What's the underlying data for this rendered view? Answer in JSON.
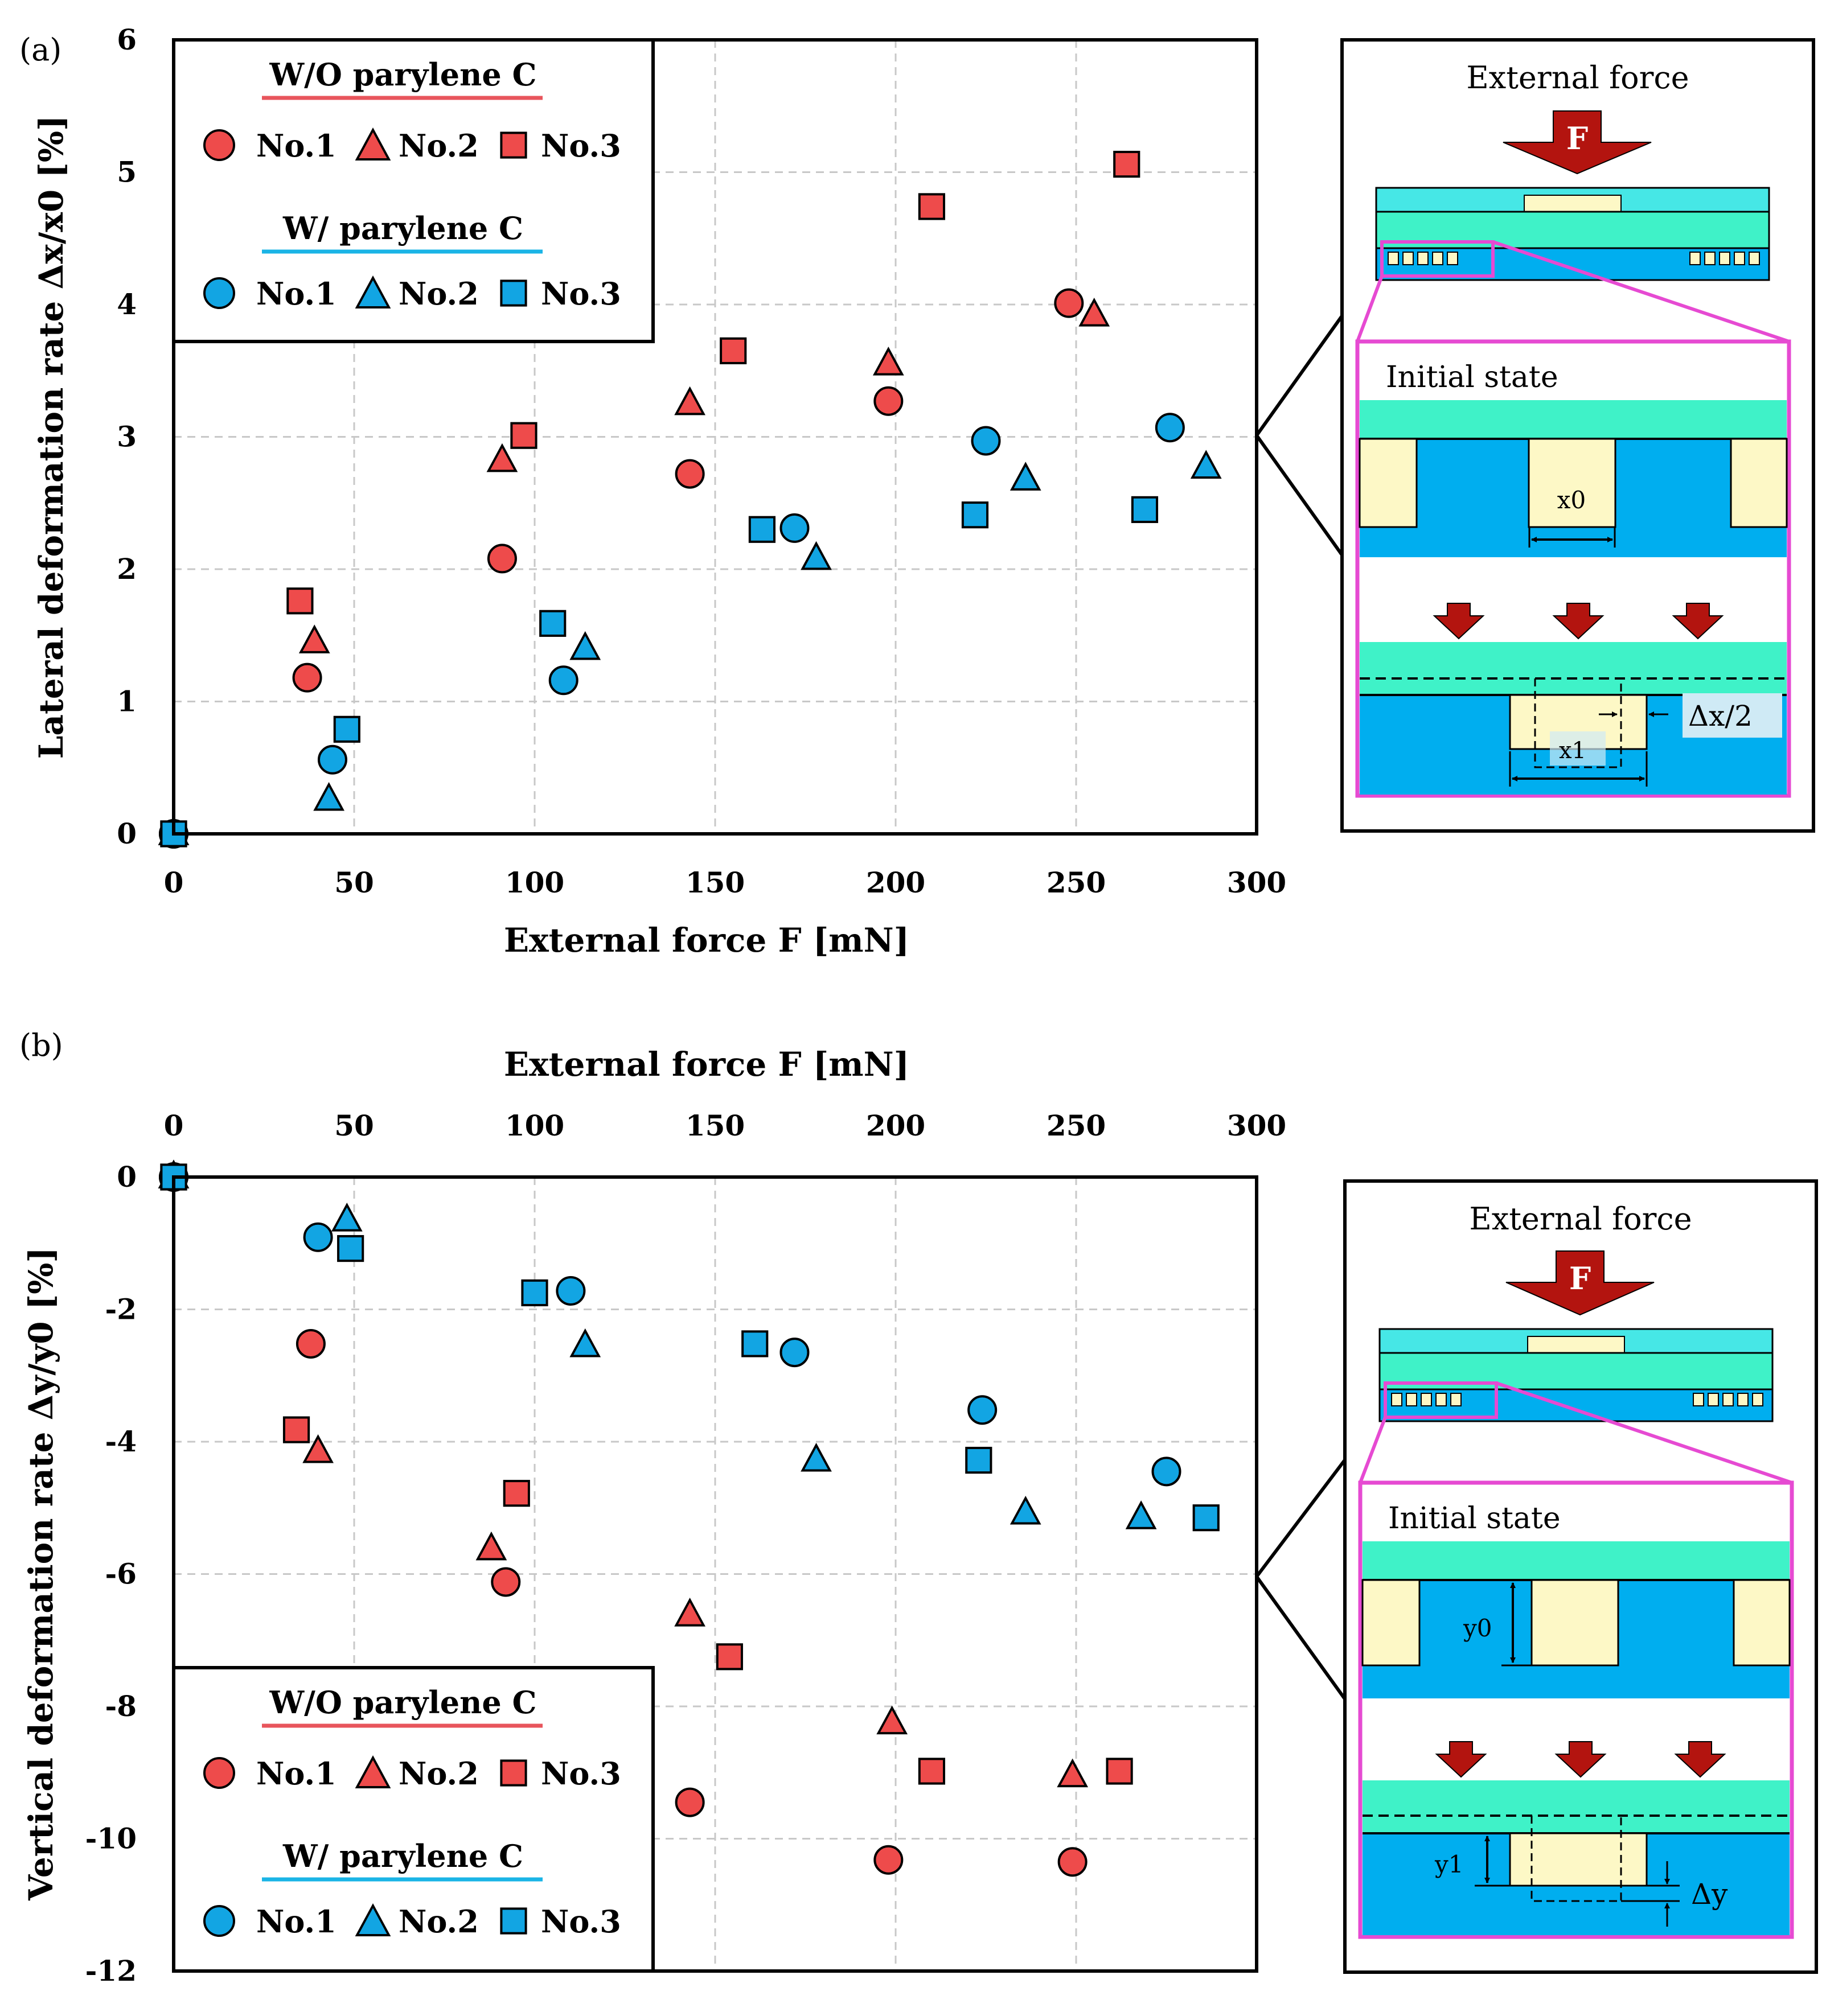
{
  "colors": {
    "wo": "#ee4b4b",
    "w": "#12a5e3",
    "wo_line": "#e8555c",
    "w_line": "#1ab4e6",
    "inset_cyan": "#46e7e6",
    "inset_green": "#3ff2c8",
    "inset_blue": "#00aeef",
    "inset_pad": "#fdf8c6",
    "inset_magenta": "#e64ad2",
    "arrow_red": "#b3140f"
  },
  "chart_data": [
    {
      "panel_label": "(a)",
      "type": "scatter",
      "xlabel": "External force F [mN]",
      "ylabel": "Lateral deformation rate Δx/x0 [%]",
      "xlim": [
        0,
        300
      ],
      "ylim": [
        0,
        6
      ],
      "xticks": [
        0,
        50,
        100,
        150,
        200,
        250,
        300
      ],
      "yticks": [
        0,
        1,
        2,
        3,
        4,
        5,
        6
      ],
      "xtick_labels": [
        "0",
        "50",
        "100",
        "150",
        "200",
        "250",
        "300"
      ],
      "ytick_labels": [
        "0",
        "1",
        "2",
        "3",
        "4",
        "5",
        "6"
      ],
      "grid": true,
      "legend_position": "top-left",
      "legend": {
        "group1_title": "W/O parylene C",
        "group2_title": "W/ parylene C",
        "entries": [
          "No.1",
          "No.2",
          "No.3"
        ]
      },
      "series": [
        {
          "name": "W/O parylene C No.1",
          "group": "wo",
          "marker": "circle",
          "x": [
            0,
            37,
            91,
            143,
            198,
            248
          ],
          "y": [
            0,
            1.18,
            2.08,
            2.72,
            3.27,
            4.01
          ]
        },
        {
          "name": "W/O parylene C No.2",
          "group": "wo",
          "marker": "triangle",
          "x": [
            0,
            39,
            91,
            143,
            198,
            255
          ],
          "y": [
            0,
            1.45,
            2.82,
            3.25,
            3.55,
            3.92
          ]
        },
        {
          "name": "W/O parylene C No.3",
          "group": "wo",
          "marker": "square",
          "x": [
            0,
            35,
            97,
            155,
            210,
            264
          ],
          "y": [
            0,
            1.76,
            3.01,
            3.65,
            4.74,
            5.06
          ]
        },
        {
          "name": "W/ parylene C No.1",
          "group": "w",
          "marker": "circle",
          "x": [
            0,
            44,
            108,
            172,
            225,
            276
          ],
          "y": [
            0,
            0.56,
            1.16,
            2.31,
            2.97,
            3.07
          ]
        },
        {
          "name": "W/ parylene C No.2",
          "group": "w",
          "marker": "triangle",
          "x": [
            0,
            43,
            114,
            178,
            236,
            286
          ],
          "y": [
            0,
            0.26,
            1.4,
            2.08,
            2.68,
            2.77
          ]
        },
        {
          "name": "W/ parylene C No.3",
          "group": "w",
          "marker": "square",
          "x": [
            0,
            48,
            105,
            163,
            222,
            269
          ],
          "y": [
            0,
            0.79,
            1.59,
            2.3,
            2.41,
            2.45
          ]
        }
      ]
    },
    {
      "panel_label": "(b)",
      "type": "scatter",
      "xlabel": "External force F [mN]",
      "ylabel": "Vertical deformation rate Δy/y0 [%]",
      "xlim": [
        0,
        300
      ],
      "ylim": [
        -12,
        0
      ],
      "xticks": [
        0,
        50,
        100,
        150,
        200,
        250,
        300
      ],
      "yticks": [
        0,
        -2,
        -4,
        -6,
        -8,
        -10,
        -12
      ],
      "xtick_labels": [
        "0",
        "50",
        "100",
        "150",
        "200",
        "250",
        "300"
      ],
      "ytick_labels": [
        "0",
        "-2",
        "-4",
        "-6",
        "-8",
        "-10",
        "-12"
      ],
      "grid": true,
      "x_axis_position": "top",
      "legend_position": "bottom-left",
      "legend": {
        "group1_title": "W/O parylene C",
        "group2_title": "W/ parylene C",
        "entries": [
          "No.1",
          "No.2",
          "No.3"
        ]
      },
      "series": [
        {
          "name": "W/O parylene C No.1",
          "group": "wo",
          "marker": "circle",
          "x": [
            0,
            38,
            92,
            143,
            198,
            249
          ],
          "y": [
            0,
            -2.52,
            -6.12,
            -9.45,
            -10.32,
            -10.35
          ]
        },
        {
          "name": "W/O parylene C No.2",
          "group": "wo",
          "marker": "triangle",
          "x": [
            0,
            40,
            88,
            143,
            199,
            249
          ],
          "y": [
            0,
            -4.15,
            -5.62,
            -6.62,
            -8.25,
            -9.05
          ]
        },
        {
          "name": "W/O parylene C No.3",
          "group": "wo",
          "marker": "square",
          "x": [
            0,
            34,
            95,
            154,
            210,
            262
          ],
          "y": [
            0,
            -3.82,
            -4.78,
            -7.25,
            -8.98,
            -8.98
          ]
        },
        {
          "name": "W/ parylene C No.1",
          "group": "w",
          "marker": "circle",
          "x": [
            0,
            40,
            110,
            172,
            224,
            275
          ],
          "y": [
            0,
            -0.91,
            -1.72,
            -2.65,
            -3.52,
            -4.45
          ]
        },
        {
          "name": "W/ parylene C No.2",
          "group": "w",
          "marker": "triangle",
          "x": [
            0,
            48,
            114,
            178,
            236,
            268
          ],
          "y": [
            0,
            -0.65,
            -2.55,
            -4.28,
            -5.08,
            -5.15
          ]
        },
        {
          "name": "W/ parylene C No.3",
          "group": "w",
          "marker": "square",
          "x": [
            0,
            49,
            100,
            161,
            223,
            286
          ],
          "y": [
            0,
            -1.08,
            -1.75,
            -2.52,
            -4.28,
            -5.15
          ]
        }
      ]
    }
  ],
  "insets": [
    {
      "title": "External force",
      "arrow_label": "F",
      "state_label": "Initial state",
      "dim_top": "x0",
      "dim_bottom": "x1",
      "delta": "Δx/2"
    },
    {
      "title": "External force",
      "arrow_label": "F",
      "state_label": "Initial state",
      "dim_top": "y0",
      "dim_bottom": "y1",
      "delta": "Δy"
    }
  ]
}
